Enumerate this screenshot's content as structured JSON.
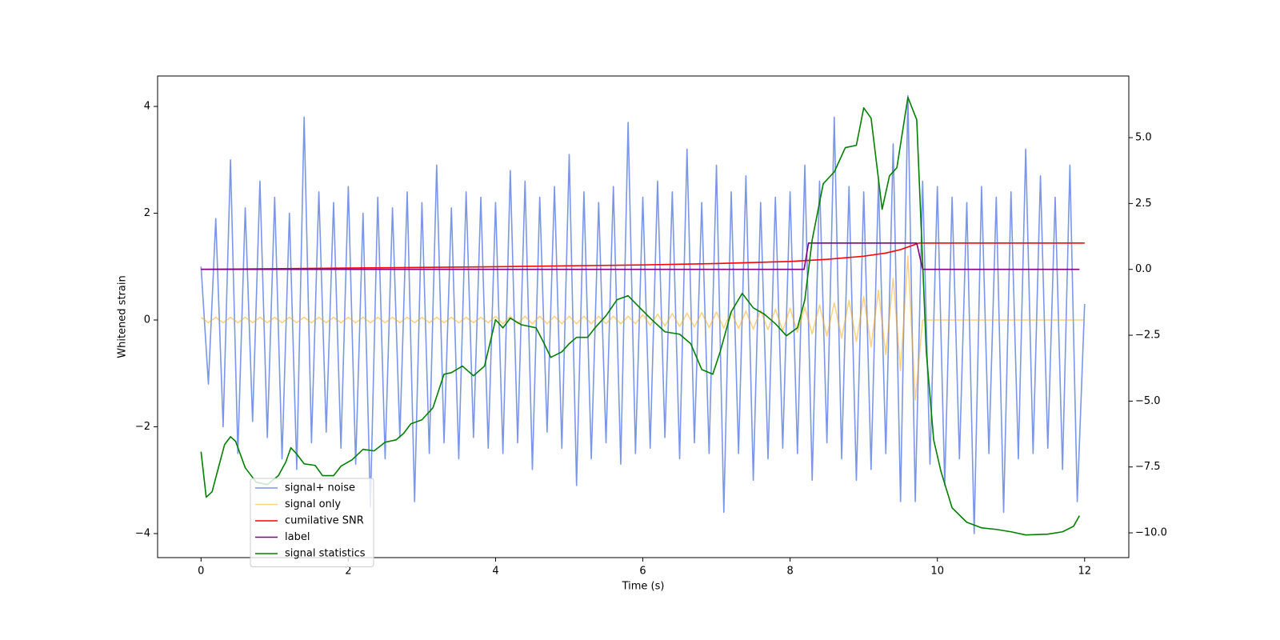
{
  "chart_data": {
    "type": "line",
    "xlabel": "Time (s)",
    "ylabel": "Whitened strain",
    "xlim": [
      -0.59,
      12.6
    ],
    "ylim": [
      -4.45,
      4.57
    ],
    "y2lim": [
      -10.94,
      7.34
    ],
    "xticks": [
      0,
      2,
      4,
      6,
      8,
      10,
      12
    ],
    "yticks": [
      {
        "value": -4,
        "label": "−4"
      },
      {
        "value": -2,
        "label": "−2"
      },
      0,
      2,
      4
    ],
    "y2ticks": [
      {
        "value": -10,
        "label": "−10.0"
      },
      {
        "value": -7.5,
        "label": "−7.5"
      },
      {
        "value": -5,
        "label": "−5.0"
      },
      {
        "value": -2.5,
        "label": "−2.5"
      },
      {
        "value": 0,
        "label": "0.0"
      },
      2.5,
      {
        "value": 5,
        "label": "5.0"
      }
    ],
    "legend": "lower left",
    "series": [
      {
        "name": "signal+ noise",
        "color": "royalblue",
        "alpha": 0.7,
        "x": [
          0,
          0.1,
          0.2,
          0.3,
          0.4,
          0.5,
          0.6,
          0.7,
          0.8,
          0.9,
          1,
          1.1,
          1.2,
          1.3,
          1.4,
          1.5,
          1.6,
          1.7,
          1.8,
          1.9,
          2,
          2.1,
          2.2,
          2.3,
          2.4,
          2.5,
          2.6,
          2.7,
          2.8,
          2.9,
          3,
          3.1,
          3.2,
          3.3,
          3.4,
          3.5,
          3.6,
          3.7,
          3.8,
          3.9,
          4,
          4.1,
          4.2,
          4.3,
          4.4,
          4.5,
          4.6,
          4.7,
          4.8,
          4.9,
          5,
          5.1,
          5.2,
          5.3,
          5.4,
          5.5,
          5.6,
          5.7,
          5.8,
          5.9,
          6,
          6.1,
          6.2,
          6.3,
          6.4,
          6.5,
          6.6,
          6.7,
          6.8,
          6.9,
          7,
          7.1,
          7.2,
          7.3,
          7.4,
          7.5,
          7.6,
          7.7,
          7.8,
          7.9,
          8,
          8.1,
          8.2,
          8.3,
          8.4,
          8.5,
          8.6,
          8.7,
          8.8,
          8.9,
          9,
          9.1,
          9.2,
          9.3,
          9.4,
          9.5,
          9.6,
          9.7,
          9.8,
          9.9,
          10,
          10.1,
          10.2,
          10.3,
          10.4,
          10.5,
          10.6,
          10.7,
          10.8,
          10.9,
          11,
          11.1,
          11.2,
          11.3,
          11.4,
          11.5,
          11.6,
          11.7,
          11.8,
          11.9,
          12
        ],
        "values": [
          1.0,
          -1.2,
          1.9,
          -2.0,
          3.0,
          -2.5,
          2.1,
          -1.9,
          2.6,
          -2.2,
          2.3,
          -2.6,
          2.0,
          -2.8,
          3.8,
          -2.3,
          2.4,
          -2.1,
          2.2,
          -2.4,
          2.5,
          -2.7,
          2.0,
          -3.5,
          2.3,
          -2.6,
          2.1,
          -2.2,
          2.4,
          -3.4,
          2.2,
          -2.5,
          2.9,
          -2.3,
          2.1,
          -2.6,
          2.4,
          -2.2,
          2.3,
          -2.4,
          2.2,
          -2.5,
          2.8,
          -2.3,
          2.6,
          -2.8,
          2.3,
          -2.1,
          2.5,
          -2.4,
          3.1,
          -3.1,
          2.4,
          -2.6,
          2.2,
          -2.3,
          2.5,
          -2.7,
          3.7,
          -2.5,
          2.3,
          -2.4,
          2.6,
          -2.2,
          2.4,
          -2.6,
          3.2,
          -2.3,
          2.2,
          -2.5,
          2.9,
          -3.6,
          2.4,
          -2.5,
          2.7,
          -3.0,
          2.2,
          -2.6,
          2.3,
          -2.4,
          2.4,
          -2.5,
          2.9,
          -3.0,
          2.6,
          -2.3,
          3.8,
          -2.6,
          2.5,
          -3.0,
          2.4,
          -2.8,
          2.6,
          -2.5,
          3.3,
          -3.4,
          4.2,
          -3.4,
          2.6,
          -2.7,
          2.5,
          -3.1,
          2.3,
          -2.6,
          2.2,
          -4.0,
          2.5,
          -2.5,
          2.3,
          -3.6,
          2.4,
          -2.6,
          3.2,
          -2.5,
          2.7,
          -2.4,
          2.3,
          -2.8,
          2.9,
          -3.4,
          0.3
        ]
      },
      {
        "name": "signal only",
        "color": "orange",
        "alpha": 0.5,
        "x": [
          0,
          0.1,
          0.2,
          0.3,
          0.4,
          0.5,
          0.6,
          0.7,
          0.8,
          0.9,
          1,
          1.1,
          1.2,
          1.3,
          1.4,
          1.5,
          1.6,
          1.7,
          1.8,
          1.9,
          2,
          2.1,
          2.2,
          2.3,
          2.4,
          2.5,
          2.6,
          2.7,
          2.8,
          2.9,
          3,
          3.1,
          3.2,
          3.3,
          3.4,
          3.5,
          3.6,
          3.7,
          3.8,
          3.9,
          4,
          4.1,
          4.2,
          4.3,
          4.4,
          4.5,
          4.6,
          4.7,
          4.8,
          4.9,
          5,
          5.1,
          5.2,
          5.3,
          5.4,
          5.5,
          5.6,
          5.7,
          5.8,
          5.9,
          6,
          6.1,
          6.2,
          6.3,
          6.4,
          6.5,
          6.6,
          6.7,
          6.8,
          6.9,
          7,
          7.1,
          7.2,
          7.3,
          7.4,
          7.5,
          7.6,
          7.7,
          7.8,
          7.9,
          8,
          8.1,
          8.2,
          8.3,
          8.4,
          8.5,
          8.6,
          8.7,
          8.8,
          8.9,
          9,
          9.1,
          9.2,
          9.3,
          9.4,
          9.5,
          9.6,
          9.7,
          9.8,
          9.9,
          10,
          10.1,
          10.2,
          10.3,
          10.4,
          10.5,
          10.6,
          10.7,
          10.8,
          10.9,
          11,
          11.1,
          11.2,
          11.3,
          11.4,
          11.5,
          11.6,
          11.7,
          11.8,
          11.9,
          12
        ],
        "values": [
          0.05,
          -0.05,
          0.05,
          -0.05,
          0.05,
          -0.05,
          0.05,
          -0.05,
          0.05,
          -0.05,
          0.05,
          -0.05,
          0.05,
          -0.05,
          0.05,
          -0.05,
          0.05,
          -0.05,
          0.05,
          -0.05,
          0.05,
          -0.05,
          0.05,
          -0.05,
          0.05,
          -0.05,
          0.05,
          -0.05,
          0.05,
          -0.05,
          0.05,
          -0.05,
          0.05,
          -0.05,
          0.05,
          -0.05,
          0.05,
          -0.05,
          0.05,
          -0.05,
          0.07,
          -0.07,
          0.07,
          -0.07,
          0.07,
          -0.07,
          0.07,
          -0.07,
          0.07,
          -0.07,
          0.07,
          -0.07,
          0.07,
          -0.07,
          0.07,
          -0.07,
          0.07,
          -0.07,
          0.07,
          -0.07,
          0.1,
          -0.1,
          0.11,
          -0.11,
          0.12,
          -0.12,
          0.13,
          -0.13,
          0.14,
          -0.14,
          0.15,
          -0.15,
          0.16,
          -0.16,
          0.17,
          -0.17,
          0.18,
          -0.18,
          0.2,
          -0.2,
          0.22,
          -0.23,
          0.24,
          -0.26,
          0.28,
          -0.3,
          0.32,
          -0.34,
          0.37,
          -0.4,
          0.44,
          -0.5,
          0.56,
          -0.65,
          0.78,
          -0.95,
          1.2,
          -1.5,
          0,
          0,
          0,
          0,
          0,
          0,
          0,
          0,
          0,
          0,
          0,
          0,
          0,
          0,
          0,
          0,
          0,
          0,
          0,
          0,
          0,
          0,
          0
        ]
      },
      {
        "name": "cumilative SNR",
        "color": "red",
        "axis": "y2",
        "x": [
          0,
          2,
          4,
          6,
          7,
          8,
          8.5,
          9,
          9.3,
          9.5,
          9.65,
          9.75,
          12
        ],
        "values": [
          0,
          0.05,
          0.1,
          0.17,
          0.22,
          0.3,
          0.38,
          0.5,
          0.62,
          0.75,
          0.9,
          1,
          1
        ]
      },
      {
        "name": "label",
        "color": "purple",
        "axis": "y2",
        "x": [
          0,
          8.19,
          8.25,
          9.72,
          9.8,
          11.93
        ],
        "values": [
          0,
          0,
          1,
          1,
          0,
          0
        ]
      },
      {
        "name": "signal statistics",
        "color": "green",
        "axis": "y2",
        "x": [
          0,
          0.07,
          0.15,
          0.25,
          0.32,
          0.4,
          0.47,
          0.6,
          0.75,
          0.9,
          1.05,
          1.15,
          1.22,
          1.3,
          1.4,
          1.55,
          1.65,
          1.8,
          1.9,
          2.05,
          2.2,
          2.35,
          2.5,
          2.65,
          2.75,
          2.85,
          3,
          3.15,
          3.3,
          3.4,
          3.55,
          3.7,
          3.85,
          4,
          4.1,
          4.2,
          4.35,
          4.55,
          4.65,
          4.75,
          4.9,
          5,
          5.1,
          5.25,
          5.35,
          5.5,
          5.65,
          5.8,
          5.95,
          6.1,
          6.3,
          6.5,
          6.65,
          6.8,
          6.95,
          7.05,
          7.2,
          7.35,
          7.5,
          7.65,
          7.8,
          7.95,
          8.1,
          8.2,
          8.3,
          8.45,
          8.6,
          8.75,
          8.9,
          9,
          9.1,
          9.25,
          9.35,
          9.45,
          9.6,
          9.72,
          9.85,
          9.95,
          10.05,
          10.2,
          10.4,
          10.6,
          10.8,
          11,
          11.2,
          11.5,
          11.7,
          11.85,
          11.93
        ],
        "values": [
          -6.92,
          -8.65,
          -8.44,
          -7.38,
          -6.65,
          -6.35,
          -6.53,
          -7.53,
          -8.08,
          -8.17,
          -7.83,
          -7.32,
          -6.77,
          -7.01,
          -7.38,
          -7.44,
          -7.83,
          -7.83,
          -7.47,
          -7.23,
          -6.83,
          -6.89,
          -6.56,
          -6.47,
          -6.23,
          -5.86,
          -5.71,
          -5.25,
          -3.98,
          -3.92,
          -3.67,
          -4.04,
          -3.67,
          -1.91,
          -2.22,
          -1.85,
          -2.1,
          -2.22,
          -2.76,
          -3.34,
          -3.13,
          -2.82,
          -2.58,
          -2.58,
          -2.22,
          -1.76,
          -1.15,
          -1.0,
          -1.43,
          -1.85,
          -2.37,
          -2.46,
          -2.82,
          -3.8,
          -3.98,
          -3.13,
          -1.61,
          -0.91,
          -1.46,
          -1.7,
          -2.06,
          -2.52,
          -2.22,
          -1.15,
          1.12,
          3.25,
          3.7,
          4.62,
          4.71,
          6.13,
          5.74,
          2.28,
          3.55,
          3.86,
          6.53,
          5.68,
          -3.13,
          -6.47,
          -7.68,
          -9.05,
          -9.6,
          -9.81,
          -9.87,
          -9.96,
          -10.08,
          -10.05,
          -9.96,
          -9.75,
          -9.35
        ]
      }
    ]
  }
}
